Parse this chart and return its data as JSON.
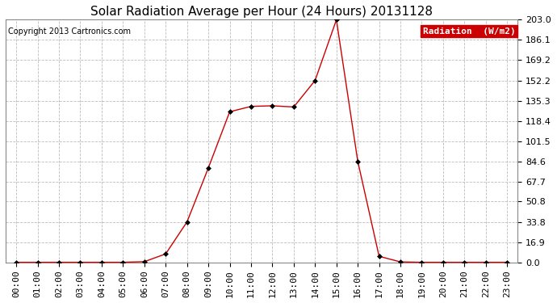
{
  "title": "Solar Radiation Average per Hour (24 Hours) 20131128",
  "copyright": "Copyright 2013 Cartronics.com",
  "legend_label": "Radiation  (W/m2)",
  "hours": [
    0,
    1,
    2,
    3,
    4,
    5,
    6,
    7,
    8,
    9,
    10,
    11,
    12,
    13,
    14,
    15,
    16,
    17,
    18,
    19,
    20,
    21,
    22,
    23
  ],
  "x_labels": [
    "00:00",
    "01:00",
    "02:00",
    "03:00",
    "04:00",
    "05:00",
    "06:00",
    "07:00",
    "08:00",
    "09:00",
    "10:00",
    "11:00",
    "12:00",
    "13:00",
    "14:00",
    "15:00",
    "16:00",
    "17:00",
    "18:00",
    "19:00",
    "20:00",
    "21:00",
    "22:00",
    "23:00"
  ],
  "values": [
    0.0,
    0.0,
    0.0,
    0.0,
    0.0,
    0.0,
    0.5,
    7.0,
    33.8,
    79.0,
    126.0,
    130.5,
    131.0,
    130.0,
    152.2,
    203.0,
    84.6,
    5.0,
    0.3,
    0.0,
    0.0,
    0.0,
    0.0,
    0.0
  ],
  "y_ticks": [
    0.0,
    16.9,
    33.8,
    50.8,
    67.7,
    84.6,
    101.5,
    118.4,
    135.3,
    152.2,
    169.2,
    186.1,
    203.0
  ],
  "ymax": 203.0,
  "ymin": 0.0,
  "line_color": "#cc0000",
  "marker": "D",
  "marker_size": 3,
  "background_color": "#ffffff",
  "plot_bg_color": "#ffffff",
  "grid_color": "#bbbbbb",
  "title_fontsize": 11,
  "copyright_fontsize": 7,
  "tick_fontsize": 8,
  "ytick_fontsize": 8,
  "legend_bg": "#cc0000",
  "legend_text_color": "#ffffff"
}
